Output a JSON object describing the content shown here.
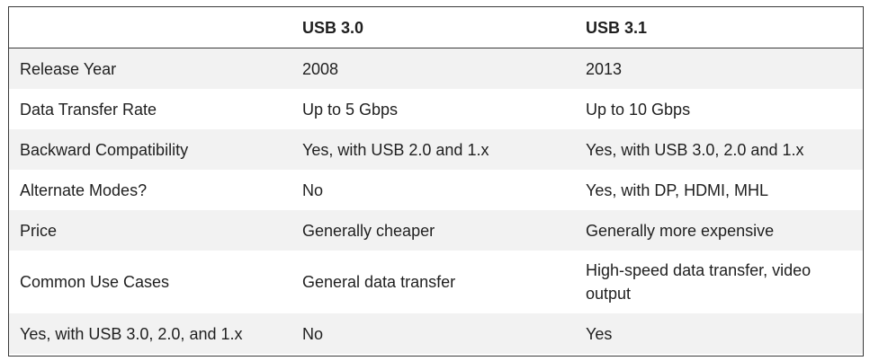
{
  "table": {
    "headers": [
      "",
      "USB 3.0",
      "USB 3.1"
    ],
    "rows": [
      [
        "Release Year",
        "2008",
        "2013"
      ],
      [
        "Data Transfer Rate",
        "Up to 5 Gbps",
        "Up to 10 Gbps"
      ],
      [
        "Backward Compatibility",
        "Yes, with USB 2.0 and 1.x",
        "Yes, with USB 3.0, 2.0 and 1.x"
      ],
      [
        "Alternate Modes?",
        "No",
        "Yes, with DP, HDMI, MHL"
      ],
      [
        "Price",
        "Generally cheaper",
        "Generally more expensive"
      ],
      [
        "Common Use Cases",
        "General data transfer",
        "High-speed data transfer, video output"
      ],
      [
        "Yes, with USB 3.0, 2.0, and 1.x",
        "No",
        "Yes"
      ]
    ]
  }
}
